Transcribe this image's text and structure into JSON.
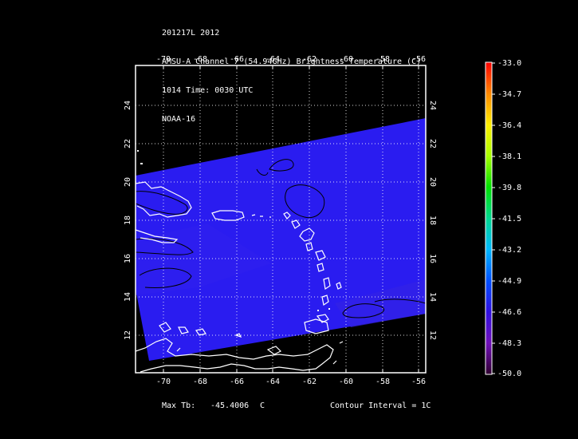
{
  "header": {
    "line1": "201217L 2012",
    "line2": "AMSU-A Channel 7 (54.94GHz) Brightness Temperature (C)",
    "line3": "1014 Time: 0030 UTC",
    "line4": "NOAA-16"
  },
  "map": {
    "lon_range": [
      -71.5,
      -55.5
    ],
    "lat_range": [
      10,
      26
    ],
    "lon_ticks": [
      "-70",
      "-68",
      "-66",
      "-64",
      "-62",
      "-60",
      "-58",
      "-56"
    ],
    "lat_ticks": [
      "24",
      "22",
      "20",
      "18",
      "16",
      "14",
      "12"
    ],
    "swath_color": "#2a1cf0",
    "coast_color": "#ffffff",
    "contour_color": "#000000"
  },
  "colorbar": {
    "labels": [
      "-33.0",
      "-34.7",
      "-36.4",
      "-38.1",
      "-39.8",
      "-41.5",
      "-43.2",
      "-44.9",
      "-46.6",
      "-48.3",
      "-50.0"
    ],
    "stops": [
      "#ff0000",
      "#ff8800",
      "#ffee00",
      "#a8ff00",
      "#00e000",
      "#00d890",
      "#00b8ff",
      "#0050ff",
      "#3010e0",
      "#7010b8",
      "#300030"
    ]
  },
  "footer": {
    "max_label": "Max Tb:",
    "max_value": "-45.4006",
    "max_unit": "C",
    "contour": "Contour Interval = 1C"
  }
}
